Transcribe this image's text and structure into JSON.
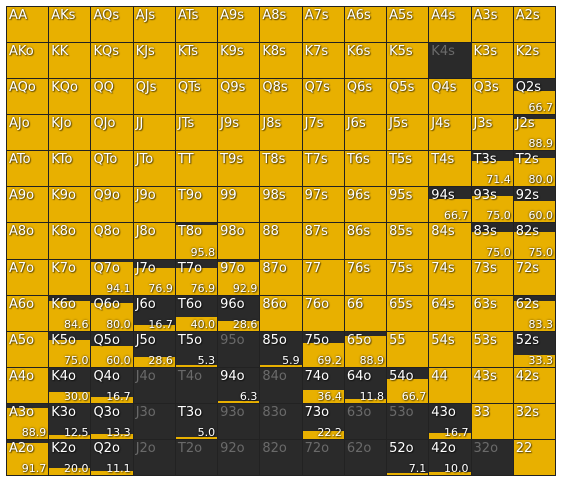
{
  "colors": {
    "played": "#e8b000",
    "folded": "#2a2a2a",
    "grid_line": "#222222"
  },
  "range_grid": {
    "rows": [
      [
        {
          "hand": "AA",
          "freq": 100
        },
        {
          "hand": "AKs",
          "freq": 100
        },
        {
          "hand": "AQs",
          "freq": 100
        },
        {
          "hand": "AJs",
          "freq": 100
        },
        {
          "hand": "ATs",
          "freq": 100
        },
        {
          "hand": "A9s",
          "freq": 100
        },
        {
          "hand": "A8s",
          "freq": 100
        },
        {
          "hand": "A7s",
          "freq": 100
        },
        {
          "hand": "A6s",
          "freq": 100
        },
        {
          "hand": "A5s",
          "freq": 100
        },
        {
          "hand": "A4s",
          "freq": 100
        },
        {
          "hand": "A3s",
          "freq": 100
        },
        {
          "hand": "A2s",
          "freq": 100
        }
      ],
      [
        {
          "hand": "AKo",
          "freq": 100
        },
        {
          "hand": "KK",
          "freq": 100
        },
        {
          "hand": "KQs",
          "freq": 100
        },
        {
          "hand": "KJs",
          "freq": 100
        },
        {
          "hand": "KTs",
          "freq": 100
        },
        {
          "hand": "K9s",
          "freq": 100
        },
        {
          "hand": "K8s",
          "freq": 100
        },
        {
          "hand": "K7s",
          "freq": 100
        },
        {
          "hand": "K6s",
          "freq": 100
        },
        {
          "hand": "K5s",
          "freq": 100
        },
        {
          "hand": "K4s",
          "freq": 0
        },
        {
          "hand": "K3s",
          "freq": 100
        },
        {
          "hand": "K2s",
          "freq": 100
        }
      ],
      [
        {
          "hand": "AQo",
          "freq": 100
        },
        {
          "hand": "KQo",
          "freq": 100
        },
        {
          "hand": "QQ",
          "freq": 100
        },
        {
          "hand": "QJs",
          "freq": 100
        },
        {
          "hand": "QTs",
          "freq": 100
        },
        {
          "hand": "Q9s",
          "freq": 100
        },
        {
          "hand": "Q8s",
          "freq": 100
        },
        {
          "hand": "Q7s",
          "freq": 100
        },
        {
          "hand": "Q6s",
          "freq": 100
        },
        {
          "hand": "Q5s",
          "freq": 100
        },
        {
          "hand": "Q4s",
          "freq": 100
        },
        {
          "hand": "Q3s",
          "freq": 100
        },
        {
          "hand": "Q2s",
          "freq": 66.7,
          "label": "66.7"
        }
      ],
      [
        {
          "hand": "AJo",
          "freq": 100
        },
        {
          "hand": "KJo",
          "freq": 100
        },
        {
          "hand": "QJo",
          "freq": 100
        },
        {
          "hand": "JJ",
          "freq": 100
        },
        {
          "hand": "JTs",
          "freq": 100
        },
        {
          "hand": "J9s",
          "freq": 100
        },
        {
          "hand": "J8s",
          "freq": 100
        },
        {
          "hand": "J7s",
          "freq": 100
        },
        {
          "hand": "J6s",
          "freq": 100
        },
        {
          "hand": "J5s",
          "freq": 100
        },
        {
          "hand": "J4s",
          "freq": 100
        },
        {
          "hand": "J3s",
          "freq": 100
        },
        {
          "hand": "J2s",
          "freq": 88.9,
          "label": "88.9"
        }
      ],
      [
        {
          "hand": "ATo",
          "freq": 100
        },
        {
          "hand": "KTo",
          "freq": 100
        },
        {
          "hand": "QTo",
          "freq": 100
        },
        {
          "hand": "JTo",
          "freq": 100
        },
        {
          "hand": "TT",
          "freq": 100
        },
        {
          "hand": "T9s",
          "freq": 100
        },
        {
          "hand": "T8s",
          "freq": 100
        },
        {
          "hand": "T7s",
          "freq": 100
        },
        {
          "hand": "T6s",
          "freq": 100
        },
        {
          "hand": "T5s",
          "freq": 100
        },
        {
          "hand": "T4s",
          "freq": 100
        },
        {
          "hand": "T3s",
          "freq": 71.4,
          "label": "71.4"
        },
        {
          "hand": "T2s",
          "freq": 80.0,
          "label": "80.0"
        }
      ],
      [
        {
          "hand": "A9o",
          "freq": 100
        },
        {
          "hand": "K9o",
          "freq": 100
        },
        {
          "hand": "Q9o",
          "freq": 100
        },
        {
          "hand": "J9o",
          "freq": 100
        },
        {
          "hand": "T9o",
          "freq": 100
        },
        {
          "hand": "99",
          "freq": 100
        },
        {
          "hand": "98s",
          "freq": 100
        },
        {
          "hand": "97s",
          "freq": 100
        },
        {
          "hand": "96s",
          "freq": 100
        },
        {
          "hand": "95s",
          "freq": 100
        },
        {
          "hand": "94s",
          "freq": 66.7,
          "label": "66.7"
        },
        {
          "hand": "93s",
          "freq": 75.0,
          "label": "75.0"
        },
        {
          "hand": "92s",
          "freq": 60.0,
          "label": "60.0"
        }
      ],
      [
        {
          "hand": "A8o",
          "freq": 100
        },
        {
          "hand": "K8o",
          "freq": 100
        },
        {
          "hand": "Q8o",
          "freq": 100
        },
        {
          "hand": "J8o",
          "freq": 100
        },
        {
          "hand": "T8o",
          "freq": 95.8,
          "label": "95.8"
        },
        {
          "hand": "98o",
          "freq": 100
        },
        {
          "hand": "88",
          "freq": 100
        },
        {
          "hand": "87s",
          "freq": 100
        },
        {
          "hand": "86s",
          "freq": 100
        },
        {
          "hand": "85s",
          "freq": 100
        },
        {
          "hand": "84s",
          "freq": 100
        },
        {
          "hand": "83s",
          "freq": 75.0,
          "label": "75.0"
        },
        {
          "hand": "82s",
          "freq": 75.0,
          "label": "75.0"
        }
      ],
      [
        {
          "hand": "A7o",
          "freq": 100
        },
        {
          "hand": "K7o",
          "freq": 100
        },
        {
          "hand": "Q7o",
          "freq": 94.1,
          "label": "94.1"
        },
        {
          "hand": "J7o",
          "freq": 76.9,
          "label": "76.9"
        },
        {
          "hand": "T7o",
          "freq": 76.9,
          "label": "76.9"
        },
        {
          "hand": "97o",
          "freq": 92.9,
          "label": "92.9"
        },
        {
          "hand": "87o",
          "freq": 100
        },
        {
          "hand": "77",
          "freq": 100
        },
        {
          "hand": "76s",
          "freq": 100
        },
        {
          "hand": "75s",
          "freq": 100
        },
        {
          "hand": "74s",
          "freq": 100
        },
        {
          "hand": "73s",
          "freq": 100
        },
        {
          "hand": "72s",
          "freq": 100
        }
      ],
      [
        {
          "hand": "A6o",
          "freq": 100
        },
        {
          "hand": "K6o",
          "freq": 84.6,
          "label": "84.6"
        },
        {
          "hand": "Q6o",
          "freq": 80.0,
          "label": "80.0"
        },
        {
          "hand": "J6o",
          "freq": 16.7,
          "label": "16.7"
        },
        {
          "hand": "T6o",
          "freq": 40.0,
          "label": "40.0"
        },
        {
          "hand": "96o",
          "freq": 28.6,
          "label": "28.6"
        },
        {
          "hand": "86o",
          "freq": 100
        },
        {
          "hand": "76o",
          "freq": 100
        },
        {
          "hand": "66",
          "freq": 100
        },
        {
          "hand": "65s",
          "freq": 100
        },
        {
          "hand": "64s",
          "freq": 100
        },
        {
          "hand": "63s",
          "freq": 100
        },
        {
          "hand": "62s",
          "freq": 83.3,
          "label": "83.3"
        }
      ],
      [
        {
          "hand": "A5o",
          "freq": 100
        },
        {
          "hand": "K5o",
          "freq": 75.0,
          "label": "75.0"
        },
        {
          "hand": "Q5o",
          "freq": 60.0,
          "label": "60.0"
        },
        {
          "hand": "J5o",
          "freq": 28.6,
          "label": "28.6"
        },
        {
          "hand": "T5o",
          "freq": 5.3,
          "label": "5.3"
        },
        {
          "hand": "95o",
          "freq": 0
        },
        {
          "hand": "85o",
          "freq": 5.9,
          "label": "5.9"
        },
        {
          "hand": "75o",
          "freq": 69.2,
          "label": "69.2"
        },
        {
          "hand": "65o",
          "freq": 88.9,
          "label": "88.9"
        },
        {
          "hand": "55",
          "freq": 100
        },
        {
          "hand": "54s",
          "freq": 100
        },
        {
          "hand": "53s",
          "freq": 100
        },
        {
          "hand": "52s",
          "freq": 33.3,
          "label": "33.3"
        }
      ],
      [
        {
          "hand": "A4o",
          "freq": 100
        },
        {
          "hand": "K4o",
          "freq": 30.0,
          "label": "30.0"
        },
        {
          "hand": "Q4o",
          "freq": 16.7,
          "label": "16.7"
        },
        {
          "hand": "J4o",
          "freq": 0
        },
        {
          "hand": "T4o",
          "freq": 0
        },
        {
          "hand": "94o",
          "freq": 6.3,
          "label": "6.3"
        },
        {
          "hand": "84o",
          "freq": 0
        },
        {
          "hand": "74o",
          "freq": 36.4,
          "label": "36.4"
        },
        {
          "hand": "64o",
          "freq": 11.8,
          "label": "11.8"
        },
        {
          "hand": "54o",
          "freq": 66.7,
          "label": "66.7"
        },
        {
          "hand": "44",
          "freq": 100
        },
        {
          "hand": "43s",
          "freq": 100
        },
        {
          "hand": "42s",
          "freq": 100
        }
      ],
      [
        {
          "hand": "A3o",
          "freq": 88.9,
          "label": "88.9"
        },
        {
          "hand": "K3o",
          "freq": 12.5,
          "label": "12.5"
        },
        {
          "hand": "Q3o",
          "freq": 13.3,
          "label": "13.3"
        },
        {
          "hand": "J3o",
          "freq": 0
        },
        {
          "hand": "T3o",
          "freq": 5.0,
          "label": "5.0"
        },
        {
          "hand": "93o",
          "freq": 0
        },
        {
          "hand": "83o",
          "freq": 0
        },
        {
          "hand": "73o",
          "freq": 22.2,
          "label": "22.2"
        },
        {
          "hand": "63o",
          "freq": 0
        },
        {
          "hand": "53o",
          "freq": 0
        },
        {
          "hand": "43o",
          "freq": 16.7,
          "label": "16.7"
        },
        {
          "hand": "33",
          "freq": 100
        },
        {
          "hand": "32s",
          "freq": 100
        }
      ],
      [
        {
          "hand": "A2o",
          "freq": 91.7,
          "label": "91.7"
        },
        {
          "hand": "K2o",
          "freq": 20.0,
          "label": "20.0"
        },
        {
          "hand": "Q2o",
          "freq": 11.1,
          "label": "11.1"
        },
        {
          "hand": "J2o",
          "freq": 0
        },
        {
          "hand": "T2o",
          "freq": 0
        },
        {
          "hand": "92o",
          "freq": 0
        },
        {
          "hand": "82o",
          "freq": 0
        },
        {
          "hand": "72o",
          "freq": 0
        },
        {
          "hand": "62o",
          "freq": 0
        },
        {
          "hand": "52o",
          "freq": 7.1,
          "label": "7.1"
        },
        {
          "hand": "42o",
          "freq": 10.0,
          "label": "10.0"
        },
        {
          "hand": "32o",
          "freq": 0
        },
        {
          "hand": "22",
          "freq": 100
        }
      ]
    ]
  }
}
